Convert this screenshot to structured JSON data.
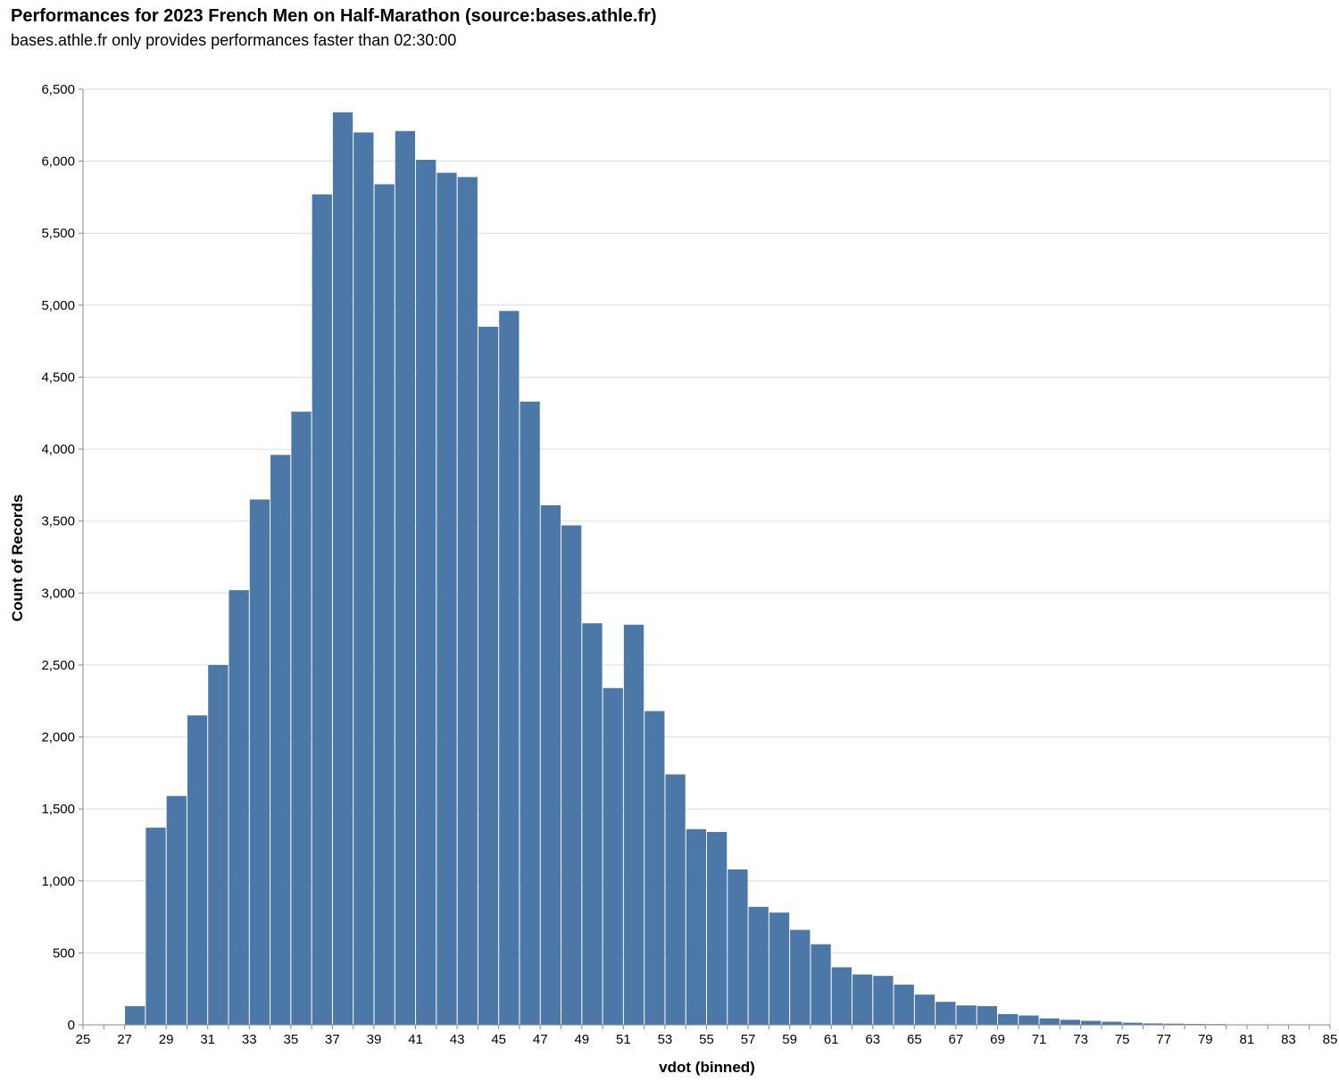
{
  "chart_data": {
    "type": "bar",
    "title": "Performances for 2023 French Men on Half-Marathon (source:bases.athle.fr)",
    "subtitle": "bases.athle.fr only provides performances faster than 02:30:00",
    "xlabel": "vdot (binned)",
    "ylabel": "Count of Records",
    "xlim": [
      25,
      85
    ],
    "ylim": [
      0,
      6500
    ],
    "bin_width": 1,
    "grid": true,
    "color": "#4c78a8",
    "x_ticks": [
      25,
      27,
      29,
      31,
      33,
      35,
      37,
      39,
      41,
      43,
      45,
      47,
      49,
      51,
      53,
      55,
      57,
      59,
      61,
      63,
      65,
      67,
      69,
      71,
      73,
      75,
      77,
      79,
      81,
      83,
      85
    ],
    "y_ticks": [
      "0",
      "500",
      "1,000",
      "1,500",
      "2,000",
      "2,500",
      "3,000",
      "3,500",
      "4,000",
      "4,500",
      "5,000",
      "5,500",
      "6,000",
      "6,500"
    ],
    "y_tick_values": [
      0,
      500,
      1000,
      1500,
      2000,
      2500,
      3000,
      3500,
      4000,
      4500,
      5000,
      5500,
      6000,
      6500
    ],
    "bins": [
      27,
      28,
      29,
      30,
      31,
      32,
      33,
      34,
      35,
      36,
      37,
      38,
      39,
      40,
      41,
      42,
      43,
      44,
      45,
      46,
      47,
      48,
      49,
      50,
      51,
      52,
      53,
      54,
      55,
      56,
      57,
      58,
      59,
      60,
      61,
      62,
      63,
      64,
      65,
      66,
      67,
      68,
      69,
      70,
      71,
      72,
      73,
      74,
      75,
      76,
      77,
      78,
      79,
      80,
      81,
      82,
      83,
      84
    ],
    "values": [
      130,
      1370,
      1590,
      2150,
      2500,
      3020,
      3650,
      3960,
      4260,
      5770,
      6340,
      6200,
      5840,
      6210,
      6010,
      5920,
      5890,
      4850,
      4960,
      4330,
      3610,
      3470,
      2790,
      2340,
      2780,
      2180,
      1740,
      1360,
      1340,
      1080,
      820,
      780,
      660,
      560,
      400,
      350,
      340,
      280,
      210,
      160,
      135,
      130,
      75,
      65,
      45,
      35,
      28,
      22,
      15,
      10,
      8,
      6,
      5,
      3,
      3,
      2,
      2,
      1
    ]
  }
}
